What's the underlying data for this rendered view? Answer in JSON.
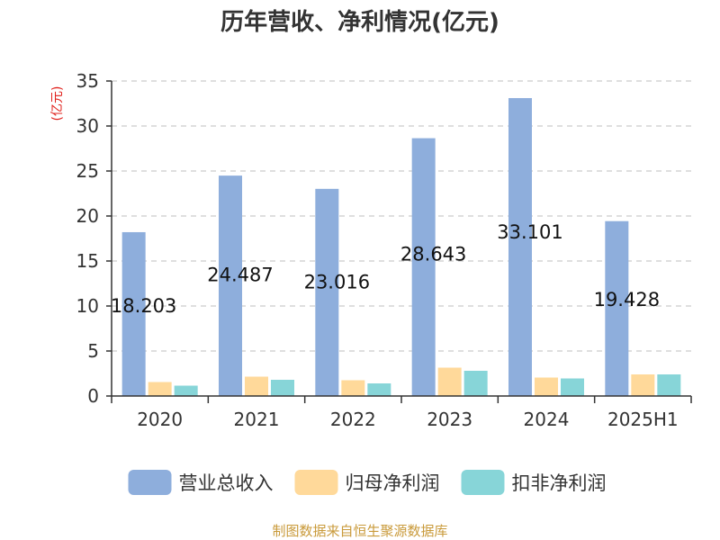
{
  "chart_data": {
    "type": "bar",
    "title": "历年营收、净利情况(亿元)",
    "ylabel": "(亿元)",
    "categories": [
      "2020",
      "2021",
      "2022",
      "2023",
      "2024",
      "2025H1"
    ],
    "ylim": [
      0,
      35
    ],
    "yticks": [
      0,
      5,
      10,
      15,
      20,
      25,
      30,
      35
    ],
    "grid": true,
    "legend_position": "bottom",
    "series": [
      {
        "name": "营业总收入",
        "color": "#8eaedc",
        "values": [
          18.203,
          24.487,
          23.016,
          28.643,
          33.101,
          19.428
        ],
        "data_labels": [
          "18.203",
          "24.487",
          "23.016",
          "28.643",
          "33.101",
          "19.428"
        ]
      },
      {
        "name": "归母净利润",
        "color": "#ffd99a",
        "values": [
          1.55,
          2.15,
          1.75,
          3.15,
          2.05,
          2.4
        ]
      },
      {
        "name": "扣非净利润",
        "color": "#87d5d8",
        "values": [
          1.15,
          1.8,
          1.4,
          2.8,
          1.95,
          2.4
        ]
      }
    ]
  },
  "source_text": "制图数据来自恒生聚源数据库",
  "colors": {
    "axis": "#333333",
    "grid": "#cccccc",
    "ylabel": "#e0201b",
    "source": "#c99a3a"
  }
}
